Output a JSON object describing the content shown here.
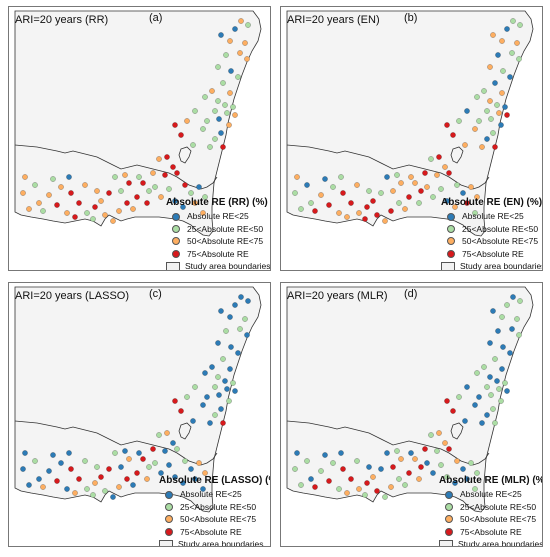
{
  "panels": [
    {
      "title": "ARI=20 years (RR)",
      "tag": "(a)",
      "legend_title": "Absolute RE (RR) (%)",
      "pattern": "a"
    },
    {
      "title": "ARI=20 years (EN)",
      "tag": "(b)",
      "legend_title": "Absolute RE (EN) (%)",
      "pattern": "b"
    },
    {
      "title": "ARI=20 years (LASSO)",
      "tag": "(c)",
      "legend_title": "Absolute RE (LASSO) (%)",
      "pattern": "c"
    },
    {
      "title": "ARI=20 years (MLR)",
      "tag": "(d)",
      "legend_title": "Absolute RE (MLR) (%)",
      "pattern": "d"
    }
  ],
  "legend": {
    "classes": [
      {
        "label": "Absolute RE<25",
        "color": "#2c7bb6"
      },
      {
        "label": "25<Absolute RE<50",
        "color": "#abdda4"
      },
      {
        "label": "50<Absolute RE<75",
        "color": "#fdae61"
      },
      {
        "label": "75<Absolute RE",
        "color": "#d7191c"
      }
    ],
    "boundary_label": "Study area boundaries"
  }
}
